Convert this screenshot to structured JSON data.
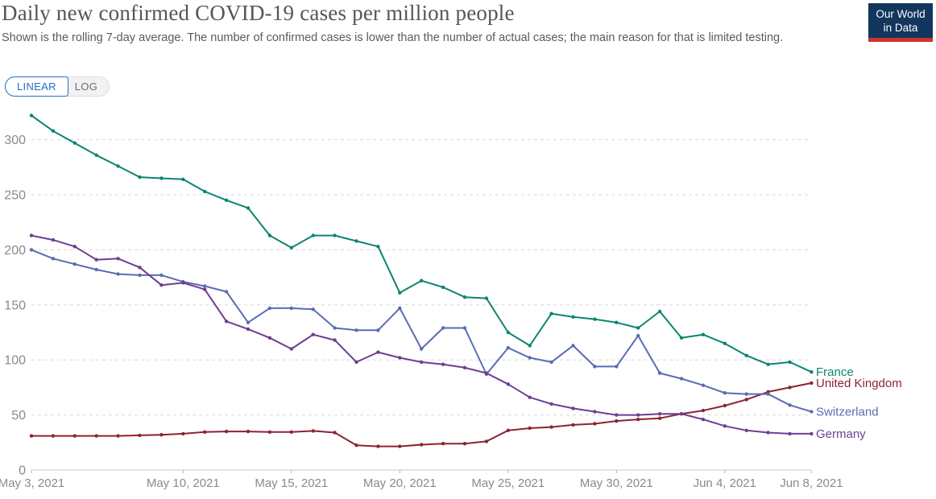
{
  "header": {
    "title": "Daily new confirmed COVID-19 cases per million people",
    "subtitle": "Shown is the rolling 7-day average. The number of confirmed cases is lower than the number of actual cases; the main reason for that is limited testing.",
    "logo": {
      "line1": "Our World",
      "line2": "in Data",
      "bg_color": "#12365E",
      "accent_color": "#CE332E"
    }
  },
  "controls": {
    "linear_label": "LINEAR",
    "log_label": "LOG",
    "active_scale": "LINEAR",
    "accent_color": "#2070C4"
  },
  "chart_data": {
    "type": "line",
    "title": "Daily new confirmed COVID-19 cases per million people",
    "xlabel": "",
    "ylabel": "",
    "grid": "dashed-horizontal",
    "legend_position": "right-of-line-ends",
    "y_ticks": [
      0,
      50,
      100,
      150,
      200,
      250,
      300
    ],
    "ylim": [
      0,
      330
    ],
    "x_ticks": [
      {
        "label": "May 3, 2021",
        "index": 0
      },
      {
        "label": "May 10, 2021",
        "index": 7
      },
      {
        "label": "May 15, 2021",
        "index": 12
      },
      {
        "label": "May 20, 2021",
        "index": 17
      },
      {
        "label": "May 25, 2021",
        "index": 22
      },
      {
        "label": "May 30, 2021",
        "index": 27
      },
      {
        "label": "Jun 4, 2021",
        "index": 32
      },
      {
        "label": "Jun 8, 2021",
        "index": 36
      }
    ],
    "dates": [
      "May 3, 2021",
      "May 4, 2021",
      "May 5, 2021",
      "May 6, 2021",
      "May 7, 2021",
      "May 8, 2021",
      "May 9, 2021",
      "May 10, 2021",
      "May 11, 2021",
      "May 12, 2021",
      "May 13, 2021",
      "May 14, 2021",
      "May 15, 2021",
      "May 16, 2021",
      "May 17, 2021",
      "May 18, 2021",
      "May 19, 2021",
      "May 20, 2021",
      "May 21, 2021",
      "May 22, 2021",
      "May 23, 2021",
      "May 24, 2021",
      "May 25, 2021",
      "May 26, 2021",
      "May 27, 2021",
      "May 28, 2021",
      "May 29, 2021",
      "May 30, 2021",
      "May 31, 2021",
      "Jun 1, 2021",
      "Jun 2, 2021",
      "Jun 3, 2021",
      "Jun 4, 2021",
      "Jun 5, 2021",
      "Jun 6, 2021",
      "Jun 7, 2021",
      "Jun 8, 2021"
    ],
    "series": [
      {
        "name": "France",
        "color": "#0D8471",
        "values": [
          322,
          308,
          297,
          286,
          276,
          266,
          265,
          264,
          253,
          245,
          238,
          213,
          202,
          213,
          213,
          208,
          203,
          161,
          172,
          166,
          157,
          156,
          125,
          113,
          142,
          139,
          137,
          134,
          129,
          144,
          120,
          123,
          115,
          104,
          96,
          98,
          89
        ]
      },
      {
        "name": "United Kingdom",
        "color": "#8C2333",
        "values": [
          31,
          31,
          31,
          31,
          31,
          31.5,
          32,
          33,
          34.5,
          35,
          35,
          34.5,
          34.5,
          35.5,
          34,
          22.5,
          21.5,
          21.5,
          23,
          24,
          24,
          26,
          36,
          38,
          39,
          41,
          42,
          44.5,
          46,
          47,
          51,
          54,
          58.5,
          64,
          71,
          75,
          79
        ]
      },
      {
        "name": "Switzerland",
        "color": "#5A6CB2",
        "values": [
          200,
          192,
          187,
          182,
          178,
          177,
          177,
          171,
          167,
          162,
          134,
          147,
          147,
          146,
          129,
          127,
          127,
          147,
          110,
          129,
          129,
          87,
          111,
          102,
          98,
          113,
          94,
          94,
          122,
          88,
          83,
          77,
          70,
          69,
          69,
          59,
          53
        ]
      },
      {
        "name": "Germany",
        "color": "#6D3E91",
        "values": [
          213,
          209,
          203,
          191,
          192,
          184,
          168,
          170,
          164,
          135,
          128,
          120,
          110,
          123,
          118,
          98,
          107,
          102,
          98,
          96,
          93,
          88,
          78,
          66,
          60,
          56,
          53,
          50,
          50,
          51,
          51,
          46,
          40,
          36,
          34,
          33,
          33
        ]
      }
    ]
  }
}
